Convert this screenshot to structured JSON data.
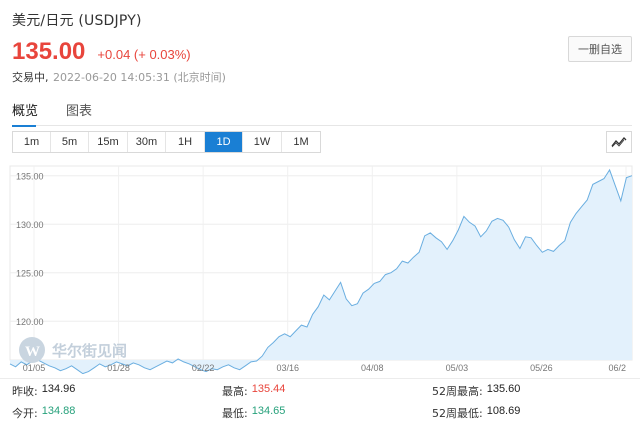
{
  "header": {
    "title": "美元/日元 (USDJPY)",
    "price": "135.00",
    "change": "+0.04 (+ 0.03%)",
    "status": "交易中,",
    "timestamp": "2022-06-20 14:05:31 (北京时间)",
    "remove_label": "一删自选"
  },
  "colors": {
    "up": "#e8453c",
    "down": "#26a17b",
    "accent": "#1a7fd4",
    "line": "#6aaee0",
    "area": "#e3f1fc"
  },
  "tabs": [
    {
      "label": "概览",
      "active": true
    },
    {
      "label": "图表",
      "active": false
    }
  ],
  "periods": [
    {
      "label": "1m",
      "active": false
    },
    {
      "label": "5m",
      "active": false
    },
    {
      "label": "15m",
      "active": false
    },
    {
      "label": "30m",
      "active": false
    },
    {
      "label": "1H",
      "active": false
    },
    {
      "label": "1D",
      "active": true
    },
    {
      "label": "1W",
      "active": false
    },
    {
      "label": "1M",
      "active": false
    }
  ],
  "chart_toggle_icon": "line-chart-icon",
  "watermark": "华尔街见闻",
  "chart_data": {
    "type": "area",
    "ylim": [
      116,
      136
    ],
    "y_ticks": [
      120.0,
      125.0,
      130.0,
      135.0
    ],
    "x_tick_labels": [
      "01/05",
      "01/28",
      "02/22",
      "03/16",
      "04/08",
      "05/03",
      "05/26",
      "06/2"
    ],
    "values": [
      115.6,
      115.3,
      115.8,
      115.5,
      115.9,
      116.0,
      115.7,
      115.4,
      115.2,
      114.9,
      115.1,
      115.4,
      115.0,
      114.6,
      114.8,
      115.2,
      115.6,
      115.3,
      115.5,
      115.8,
      115.6,
      115.4,
      115.7,
      115.5,
      115.2,
      115.0,
      115.3,
      115.6,
      115.9,
      115.7,
      116.1,
      115.8,
      115.6,
      115.3,
      115.0,
      114.8,
      115.1,
      115.0,
      115.3,
      115.5,
      115.2,
      115.0,
      115.4,
      115.8,
      115.9,
      116.4,
      117.3,
      117.8,
      118.4,
      118.7,
      118.4,
      119.0,
      119.6,
      119.4,
      120.7,
      121.5,
      122.7,
      122.2,
      123.1,
      124.0,
      122.3,
      121.6,
      121.8,
      122.9,
      123.3,
      123.9,
      124.1,
      124.8,
      125.0,
      125.4,
      126.2,
      126.0,
      126.6,
      127.1,
      128.8,
      129.1,
      128.6,
      128.2,
      127.4,
      128.3,
      129.4,
      130.8,
      130.2,
      129.8,
      128.7,
      129.3,
      130.3,
      130.6,
      130.4,
      129.7,
      128.4,
      127.5,
      128.7,
      128.6,
      127.8,
      127.1,
      127.4,
      127.2,
      127.8,
      128.3,
      130.2,
      131.1,
      131.8,
      132.5,
      134.1,
      134.4,
      134.7,
      135.6,
      134.0,
      132.4,
      134.8,
      135.0
    ],
    "grid": true,
    "legend": "none"
  },
  "stats": [
    [
      {
        "label": "昨收:",
        "value": "134.96",
        "tone": "black"
      },
      {
        "label": "最高:",
        "value": "135.44",
        "tone": "red"
      },
      {
        "label": "52周最高:",
        "value": "135.60",
        "tone": "black"
      }
    ],
    [
      {
        "label": "今开:",
        "value": "134.88",
        "tone": "green"
      },
      {
        "label": "最低:",
        "value": "134.65",
        "tone": "green"
      },
      {
        "label": "52周最低:",
        "value": "108.69",
        "tone": "black"
      }
    ]
  ]
}
